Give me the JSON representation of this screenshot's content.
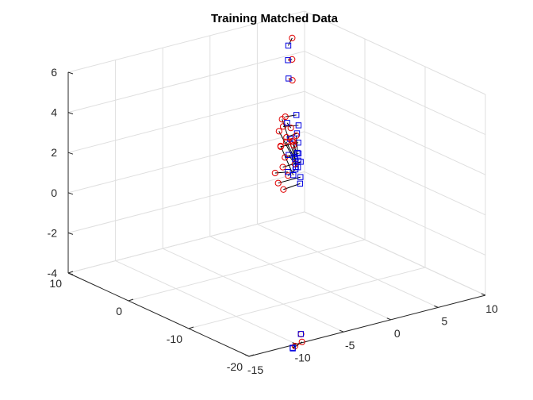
{
  "chart_data": {
    "type": "scatter3d",
    "title": "Training Matched Data",
    "xlabel": "",
    "ylabel": "",
    "zlabel": "",
    "xlim": [
      -20,
      10
    ],
    "ylim": [
      -15,
      10
    ],
    "zlim": [
      -4,
      6
    ],
    "x_ticks": [
      "-20",
      "-10",
      "0",
      "10"
    ],
    "y_ticks": [
      "-15",
      "-10",
      "-5",
      "0",
      "5",
      "10"
    ],
    "z_ticks": [
      "-4",
      "-2",
      "0",
      "2",
      "4",
      "6"
    ],
    "grid": true,
    "colors": {
      "set_a": "#e00000",
      "set_b": "#0000e0",
      "links": "#000000"
    },
    "marker_a": "circle",
    "marker_b": "square",
    "pairs": [
      {
        "a": [
          5,
          5.5,
          5.9
        ],
        "b": [
          5.8,
          5.6,
          5.4
        ]
      },
      {
        "a": [
          4.7,
          5.3,
          4.9
        ],
        "b": [
          5.7,
          5.5,
          4.7
        ]
      },
      {
        "a": [
          4.5,
          5.2,
          3.9
        ],
        "b": [
          5.6,
          5.5,
          3.8
        ]
      },
      {
        "a": [
          3.0,
          3.5,
          2.5
        ],
        "b": [
          3.2,
          4.8,
          2.4
        ]
      },
      {
        "a": [
          3.2,
          3.4,
          2.0
        ],
        "b": [
          3.0,
          4.9,
          1.9
        ]
      },
      {
        "a": [
          2.8,
          3.5,
          1.5
        ],
        "b": [
          3.1,
          4.8,
          1.5
        ]
      },
      {
        "a": [
          3.3,
          3.2,
          1.0
        ],
        "b": [
          3.2,
          5.0,
          1.0
        ]
      },
      {
        "a": [
          2.9,
          3.4,
          0.5
        ],
        "b": [
          3.0,
          4.9,
          0.5
        ]
      },
      {
        "a": [
          3.1,
          3.3,
          0.0
        ],
        "b": [
          2.8,
          5.0,
          0.1
        ]
      },
      {
        "a": [
          2.7,
          3.6,
          -0.4
        ],
        "b": [
          3.2,
          4.7,
          -0.3
        ]
      },
      {
        "a": [
          3.4,
          3.0,
          -0.8
        ],
        "b": [
          3.0,
          5.1,
          -0.7
        ]
      },
      {
        "a": [
          3.0,
          3.3,
          -1.1
        ],
        "b": [
          2.9,
          5.0,
          -1.0
        ]
      },
      {
        "a": [
          4.0,
          3.8,
          2.2
        ],
        "b": [
          3.3,
          4.7,
          0.3
        ]
      },
      {
        "a": [
          4.2,
          3.6,
          1.6
        ],
        "b": [
          3.1,
          4.9,
          -0.2
        ]
      },
      {
        "a": [
          4.4,
          3.9,
          0.8
        ],
        "b": [
          3.4,
          4.6,
          -0.6
        ]
      },
      {
        "a": [
          2.5,
          3.9,
          1.3
        ],
        "b": [
          3.6,
          4.4,
          1.2
        ]
      },
      {
        "a": [
          2.2,
          4.0,
          0.2
        ],
        "b": [
          3.7,
          4.3,
          0.4
        ]
      },
      {
        "a": [
          2.4,
          3.7,
          2.0
        ],
        "b": [
          3.8,
          4.2,
          2.0
        ]
      },
      {
        "a": [
          3.6,
          2.8,
          -0.3
        ],
        "b": [
          4.0,
          4.4,
          -0.5
        ]
      },
      {
        "a": [
          4.1,
          4.3,
          1.0
        ],
        "b": [
          4.2,
          5.3,
          0.0
        ]
      },
      {
        "a": [
          4.0,
          5.3,
          1.2
        ],
        "b": [
          4.6,
          5.8,
          0.2
        ]
      },
      {
        "a": [
          4.2,
          5.1,
          0.9
        ],
        "b": [
          4.6,
          5.9,
          -0.2
        ]
      },
      {
        "a": [
          4.3,
          5.2,
          0.7
        ],
        "b": [
          4.7,
          5.7,
          -0.5
        ]
      },
      {
        "a": [
          -18.9,
          -8.8,
          -3.8
        ],
        "b": [
          -18.4,
          -8.5,
          -3.9
        ]
      },
      {
        "a": [
          -18.9,
          -8.7,
          -4.2
        ],
        "b": [
          -18.0,
          -9.1,
          -4.6
        ]
      },
      {
        "a": [
          -19.0,
          -9.5,
          -4.3
        ],
        "b": [
          -18.3,
          -9.3,
          -4.5
        ]
      }
    ]
  }
}
